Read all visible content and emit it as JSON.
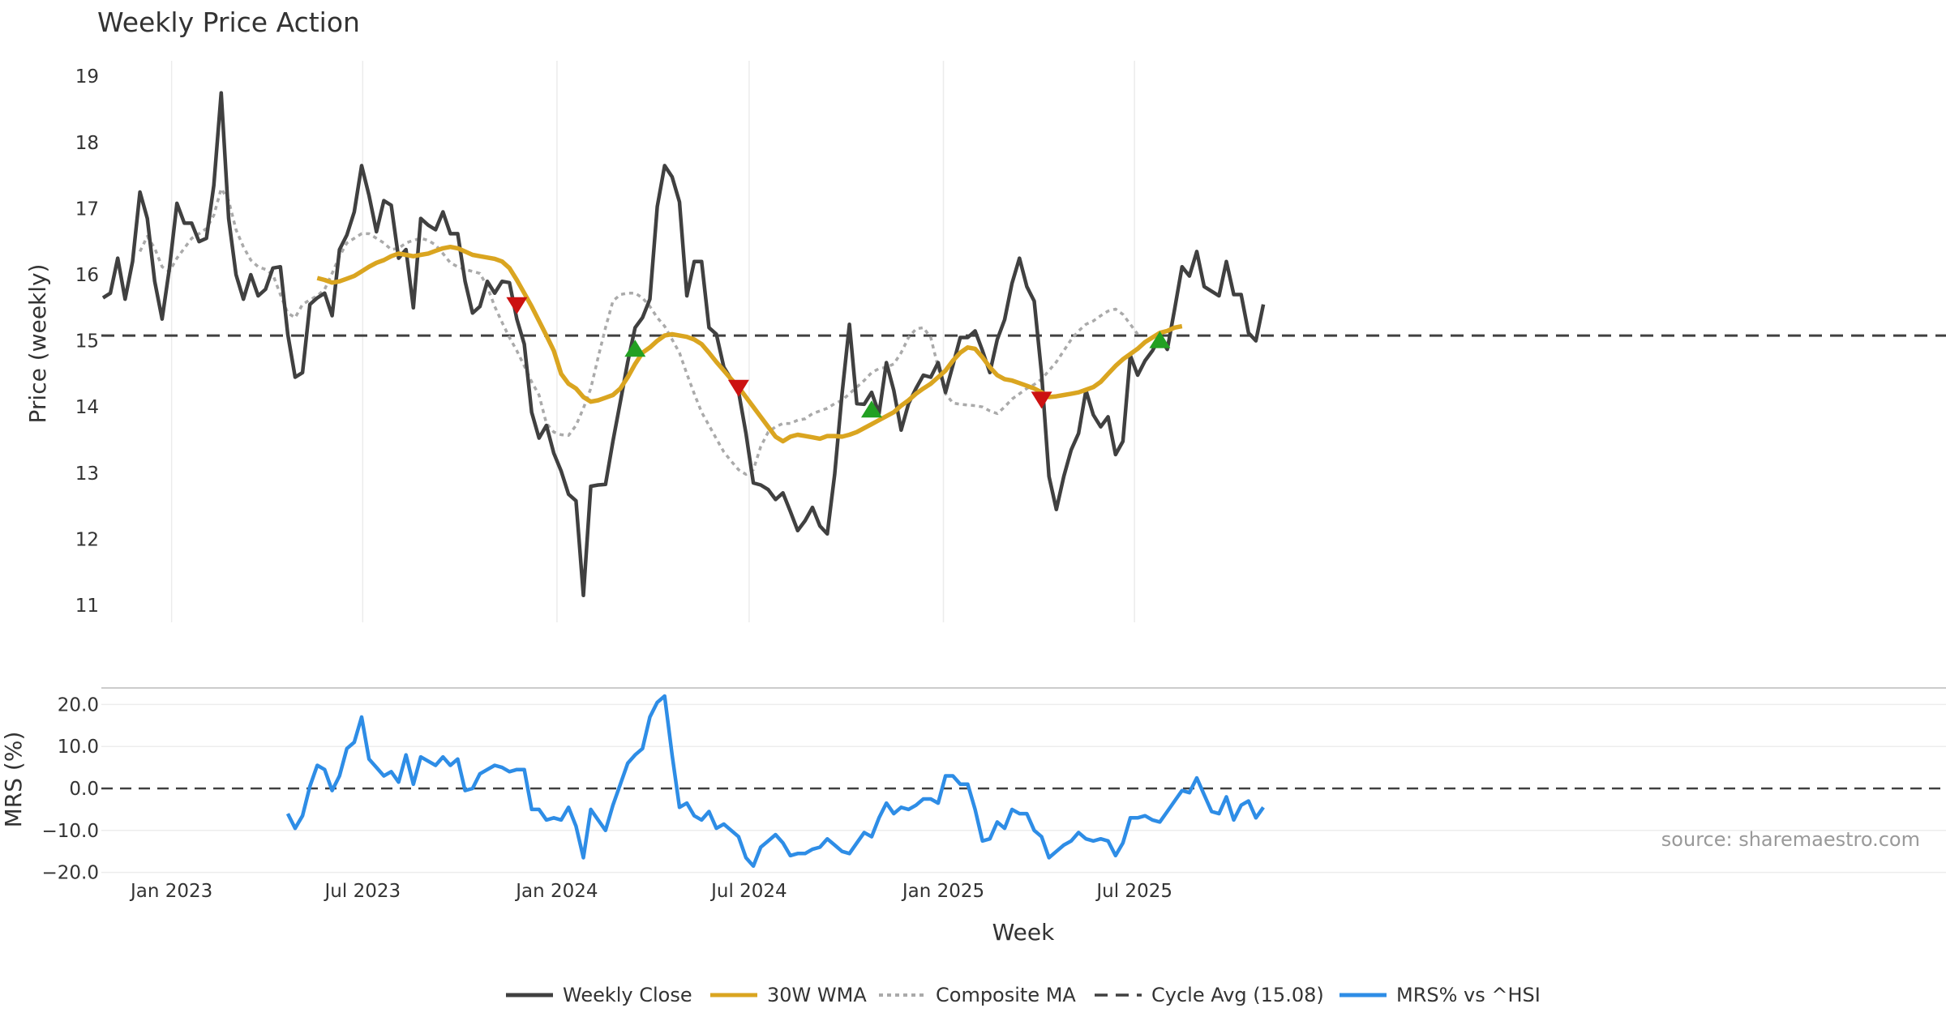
{
  "chart_data": [
    {
      "type": "line",
      "title": "Weekly Price Action",
      "ylabel": "Price (weekly)",
      "xlabel": "",
      "ylim": [
        10.7,
        19.3
      ],
      "yticks": [
        11,
        12,
        13,
        14,
        15,
        16,
        17,
        18,
        19
      ],
      "x_start": "2022-10-28",
      "x_step_weeks": 1,
      "series": [
        {
          "name": "Weekly Close",
          "color": "#404040",
          "values": [
            15.65,
            15.72,
            16.25,
            15.63,
            16.2,
            17.25,
            16.85,
            15.9,
            15.33,
            16.1,
            17.08,
            16.78,
            16.78,
            16.5,
            16.55,
            17.35,
            18.75,
            16.85,
            16.0,
            15.63,
            16.0,
            15.68,
            15.78,
            16.1,
            16.12,
            15.1,
            14.45,
            14.52,
            15.55,
            15.65,
            15.72,
            15.38,
            16.38,
            16.6,
            16.95,
            17.65,
            17.2,
            16.65,
            17.12,
            17.05,
            16.25,
            16.38,
            15.5,
            16.85,
            16.75,
            16.68,
            16.95,
            16.62,
            16.62,
            15.9,
            15.42,
            15.52,
            15.9,
            15.72,
            15.9,
            15.88,
            15.33,
            14.95,
            13.92,
            13.53,
            13.72,
            13.3,
            13.03,
            12.68,
            12.58,
            11.15,
            12.8,
            12.82,
            12.83,
            13.48,
            14.08,
            14.68,
            15.2,
            15.35,
            15.63,
            17.03,
            17.65,
            17.48,
            17.1,
            15.68,
            16.2,
            16.2,
            15.2,
            15.1,
            14.6,
            14.42,
            14.23,
            13.6,
            12.85,
            12.82,
            12.75,
            12.6,
            12.7,
            12.42,
            12.13,
            12.28,
            12.48,
            12.2,
            12.08,
            12.98,
            14.2,
            15.25,
            14.05,
            14.04,
            14.22,
            13.9,
            14.67,
            14.25,
            13.65,
            14.05,
            14.28,
            14.48,
            14.45,
            14.67,
            14.22,
            14.63,
            15.05,
            15.05,
            15.15,
            14.85,
            14.52,
            15.02,
            15.32,
            15.87,
            16.25,
            15.82,
            15.6,
            14.5,
            12.95,
            12.45,
            12.95,
            13.35,
            13.6,
            14.25,
            13.88,
            13.7,
            13.85,
            13.28,
            13.48,
            14.78,
            14.48,
            14.7,
            14.85,
            15.05,
            14.87,
            15.48,
            16.12,
            15.98,
            16.35,
            15.82,
            15.75,
            15.68,
            16.2,
            15.7,
            15.7,
            15.12,
            15.0,
            15.55
          ]
        },
        {
          "name": "30W WMA",
          "color": "#DAA520",
          "start_index": 29,
          "values": [
            15.95,
            15.92,
            15.88,
            15.9,
            15.94,
            15.98,
            16.05,
            16.12,
            16.18,
            16.22,
            16.28,
            16.32,
            16.3,
            16.28,
            16.3,
            16.32,
            16.36,
            16.4,
            16.42,
            16.4,
            16.35,
            16.3,
            16.28,
            16.26,
            16.24,
            16.2,
            16.1,
            15.92,
            15.72,
            15.52,
            15.3,
            15.08,
            14.85,
            14.5,
            14.35,
            14.28,
            14.15,
            14.08,
            14.1,
            14.14,
            14.18,
            14.28,
            14.45,
            14.65,
            14.82,
            14.9,
            15.0,
            15.08,
            15.1,
            15.08,
            15.06,
            15.02,
            14.95,
            14.82,
            14.68,
            14.55,
            14.42,
            14.3,
            14.15,
            14.0,
            13.85,
            13.7,
            13.55,
            13.48,
            13.55,
            13.58,
            13.56,
            13.54,
            13.52,
            13.56,
            13.56,
            13.55,
            13.58,
            13.62,
            13.68,
            13.74,
            13.8,
            13.86,
            13.92,
            14.02,
            14.1,
            14.2,
            14.28,
            14.35,
            14.45,
            14.55,
            14.7,
            14.82,
            14.9,
            14.88,
            14.75,
            14.6,
            14.48,
            14.42,
            14.4,
            14.36,
            14.32,
            14.28,
            14.22,
            14.15,
            14.16,
            14.18,
            14.2,
            14.22,
            14.26,
            14.3,
            14.38,
            14.5,
            14.62,
            14.72,
            14.8,
            14.88,
            14.98,
            15.05,
            15.12,
            15.15,
            15.2,
            15.22
          ]
        },
        {
          "name": "Composite MA",
          "color": "#AAAAAA",
          "start_index": 5,
          "values": [
            16.35,
            16.58,
            16.4,
            16.12,
            16.05,
            16.25,
            16.4,
            16.55,
            16.62,
            16.7,
            16.9,
            17.3,
            17.12,
            16.68,
            16.42,
            16.22,
            16.12,
            16.08,
            16.0,
            15.7,
            15.42,
            15.35,
            15.55,
            15.62,
            15.68,
            15.78,
            16.02,
            16.28,
            16.48,
            16.55,
            16.62,
            16.62,
            16.55,
            16.48,
            16.38,
            16.4,
            16.48,
            16.52,
            16.55,
            16.52,
            16.45,
            16.32,
            16.18,
            16.12,
            16.08,
            16.05,
            16.02,
            15.82,
            15.52,
            15.28,
            15.05,
            14.85,
            14.62,
            14.38,
            14.18,
            13.75,
            13.62,
            13.58,
            13.57,
            13.72,
            13.98,
            14.28,
            14.75,
            15.2,
            15.6,
            15.7,
            15.72,
            15.72,
            15.65,
            15.52,
            15.35,
            15.22,
            15.02,
            14.82,
            14.5,
            14.2,
            13.92,
            13.72,
            13.52,
            13.32,
            13.18,
            13.05,
            12.98,
            13.05,
            13.4,
            13.62,
            13.7,
            13.75,
            13.75,
            13.8,
            13.82,
            13.9,
            13.94,
            13.98,
            14.05,
            14.1,
            14.2,
            14.3,
            14.4,
            14.52,
            14.58,
            14.6,
            14.65,
            14.82,
            15.05,
            15.18,
            15.2,
            15.05,
            14.6,
            14.2,
            14.06,
            14.04,
            14.03,
            14.02,
            14.0,
            13.94,
            13.9,
            14.0,
            14.12,
            14.2,
            14.28,
            14.34,
            14.42,
            14.55,
            14.68,
            14.85,
            15.02,
            15.15,
            15.25,
            15.3,
            15.38,
            15.45,
            15.48,
            15.4,
            15.25,
            15.1
          ]
        },
        {
          "name": "Cycle Avg (15.08)",
          "color": "#404040",
          "constant": 15.08
        }
      ],
      "signals": [
        {
          "type": "sell",
          "index": 56,
          "value": 15.55
        },
        {
          "type": "buy",
          "index": 72,
          "value": 14.87
        },
        {
          "type": "sell",
          "index": 86,
          "value": 14.3
        },
        {
          "type": "buy",
          "index": 104,
          "value": 13.95
        },
        {
          "type": "sell",
          "index": 127,
          "value": 14.12
        },
        {
          "type": "buy",
          "index": 143,
          "value": 15.0
        }
      ]
    },
    {
      "type": "line",
      "ylabel": "MRS (%)",
      "xlabel": "Week",
      "ylim": [
        -20.5,
        22.5
      ],
      "yticks": [
        20.0,
        10.0,
        0.0,
        -10.0,
        -20.0
      ],
      "ytick_labels": [
        "20.0",
        "10.0",
        "0.0",
        "−10.0",
        "−20.0"
      ],
      "xtick_labels": [
        "Jan 2023",
        "Jul 2023",
        "Jan 2024",
        "Jul 2024",
        "Jan 2025",
        "Jul 2025"
      ],
      "xtick_dates": [
        "2023-01-01",
        "2023-07-01",
        "2024-01-01",
        "2024-07-01",
        "2025-01-01",
        "2025-07-01"
      ],
      "series": [
        {
          "name": "MRS% vs ^HSI",
          "color": "#2E8DE6",
          "start_index": 25,
          "values": [
            -6.0,
            -9.5,
            -6.5,
            0.5,
            5.5,
            4.5,
            -0.5,
            3.0,
            9.5,
            11.0,
            17.0,
            7.0,
            5.0,
            3.0,
            4.0,
            1.5,
            8.0,
            1.0,
            7.5,
            6.5,
            5.5,
            7.5,
            5.5,
            7.0,
            -0.5,
            0.0,
            3.5,
            4.5,
            5.5,
            5.0,
            4.0,
            4.5,
            4.5,
            -5.0,
            -5.0,
            -7.5,
            -7.0,
            -7.5,
            -4.5,
            -9.0,
            -16.5,
            -5.0,
            -7.5,
            -10.0,
            -4.0,
            1.0,
            6.0,
            8.0,
            9.5,
            17.0,
            20.5,
            22.0,
            8.0,
            -4.5,
            -3.5,
            -6.5,
            -7.5,
            -5.5,
            -9.5,
            -8.5,
            -10.0,
            -11.5,
            -16.5,
            -18.5,
            -14.0,
            -12.5,
            -11.0,
            -13.0,
            -16.0,
            -15.5,
            -15.5,
            -14.5,
            -14.0,
            -12.0,
            -13.5,
            -15.0,
            -15.5,
            -13.0,
            -10.5,
            -11.5,
            -7.0,
            -3.5,
            -6.0,
            -4.5,
            -5.0,
            -4.0,
            -2.5,
            -2.5,
            -3.5,
            3.0,
            3.0,
            1.0,
            1.0,
            -5.0,
            -12.5,
            -12.0,
            -8.0,
            -9.5,
            -5.0,
            -6.0,
            -6.0,
            -10.0,
            -11.5,
            -16.5,
            -15.0,
            -13.5,
            -12.5,
            -10.5,
            -12.0,
            -12.5,
            -12.0,
            -12.5,
            -16.0,
            -13.0,
            -7.0,
            -7.0,
            -6.5,
            -7.5,
            -8.0,
            -5.5,
            -3.0,
            -0.5,
            -1.0,
            2.5,
            -1.5,
            -5.5,
            -6.0,
            -2.0,
            -7.5,
            -4.0,
            -3.0,
            -7.0,
            -4.5
          ]
        }
      ],
      "annotations": [
        "source: sharemaestro.com"
      ]
    }
  ],
  "header": {
    "title": "Weekly Price Action"
  },
  "axes": {
    "top_ylabel": "Price (weekly)",
    "top_yticks": [
      "11",
      "12",
      "13",
      "14",
      "15",
      "16",
      "17",
      "18",
      "19"
    ],
    "bottom_ylabel": "MRS (%)",
    "bottom_yticks": [
      "20.0",
      "10.0",
      "0.0",
      "−10.0",
      "−20.0"
    ],
    "xlabel": "Week",
    "xticks": [
      "Jan 2023",
      "Jul 2023",
      "Jan 2024",
      "Jul 2024",
      "Jan 2025",
      "Jul 2025"
    ]
  },
  "legend": {
    "items": [
      {
        "label": "Weekly Close",
        "color": "#404040",
        "style": "solid"
      },
      {
        "label": "30W WMA",
        "color": "#DAA520",
        "style": "solid"
      },
      {
        "label": "Composite MA",
        "color": "#AAAAAA",
        "style": "dotted"
      },
      {
        "label": "Cycle Avg (15.08)",
        "color": "#404040",
        "style": "dashed"
      },
      {
        "label": "MRS% vs ^HSI",
        "color": "#2E8DE6",
        "style": "solid"
      }
    ]
  },
  "source": "source: sharemaestro.com"
}
